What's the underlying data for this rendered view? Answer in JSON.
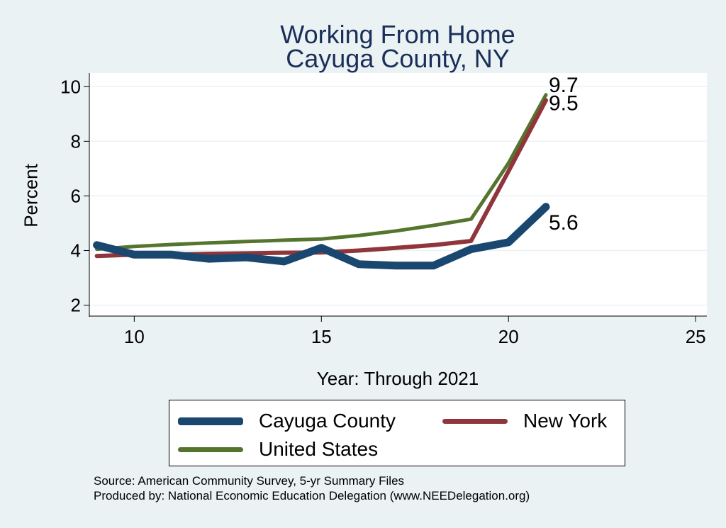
{
  "chart_data": {
    "type": "line",
    "title": [
      "Working From Home",
      "Cayuga County, NY"
    ],
    "xlabel": "Year: Through 2021",
    "ylabel": "Percent",
    "xlim": [
      8.8,
      25.3
    ],
    "ylim": [
      1.6,
      10.5
    ],
    "xticks": [
      10,
      15,
      20,
      25
    ],
    "yticks": [
      2,
      4,
      6,
      8,
      10
    ],
    "grid": "horizontal",
    "legend_position": "bottom",
    "series": [
      {
        "name": "Cayuga County",
        "color": "#1a476f",
        "x": [
          9,
          10,
          11,
          12,
          13,
          14,
          15,
          16,
          17,
          18,
          19,
          20,
          21
        ],
        "y": [
          4.2,
          3.85,
          3.85,
          3.7,
          3.75,
          3.6,
          4.1,
          3.5,
          3.45,
          3.45,
          4.05,
          4.3,
          5.6
        ],
        "end_label": "5.6"
      },
      {
        "name": "New York",
        "color": "#90353b",
        "x": [
          9,
          10,
          11,
          12,
          13,
          14,
          15,
          16,
          17,
          18,
          19,
          20,
          21
        ],
        "y": [
          3.8,
          3.85,
          3.85,
          3.88,
          3.9,
          3.92,
          3.93,
          4.0,
          4.1,
          4.2,
          4.35,
          6.9,
          9.5
        ],
        "end_label": "9.5"
      },
      {
        "name": "United States",
        "color": "#55752f",
        "x": [
          9,
          10,
          11,
          12,
          13,
          14,
          15,
          16,
          17,
          18,
          19,
          20,
          21
        ],
        "y": [
          4.05,
          4.15,
          4.22,
          4.28,
          4.33,
          4.38,
          4.42,
          4.55,
          4.72,
          4.92,
          5.15,
          7.2,
          9.7
        ],
        "end_label": "9.7"
      }
    ]
  },
  "footnotes": [
    "Source: American Community Survey, 5-yr Summary Files",
    "Produced by: National Economic Education Delegation (www.NEEDelegation.org)"
  ]
}
